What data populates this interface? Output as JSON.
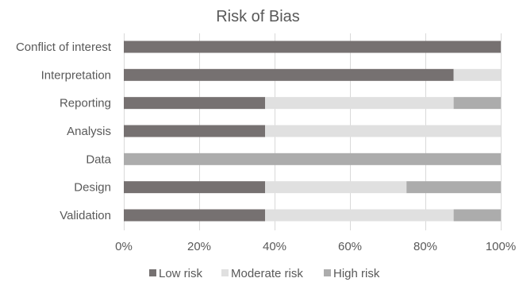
{
  "chart_data": {
    "type": "bar",
    "orientation": "horizontal",
    "stacked": "100%",
    "title": "Risk of Bias",
    "categories": [
      "Conflict of interest",
      "Interpretation",
      "Reporting",
      "Analysis",
      "Data",
      "Design",
      "Validation"
    ],
    "series": [
      {
        "name": "Low risk",
        "color": "#767171",
        "values": [
          100,
          87.5,
          37.5,
          37.5,
          0,
          37.5,
          37.5
        ]
      },
      {
        "name": "Moderate risk",
        "color": "#e0e0e0",
        "values": [
          0,
          12.5,
          50,
          62.5,
          0,
          37.5,
          50
        ]
      },
      {
        "name": "High risk",
        "color": "#acacac",
        "values": [
          0,
          0,
          12.5,
          0,
          100,
          25,
          12.5
        ]
      }
    ],
    "x_ticks": [
      "0%",
      "20%",
      "40%",
      "60%",
      "80%",
      "100%"
    ],
    "xlim": [
      0,
      100
    ],
    "grid": true,
    "legend_position": "bottom"
  }
}
